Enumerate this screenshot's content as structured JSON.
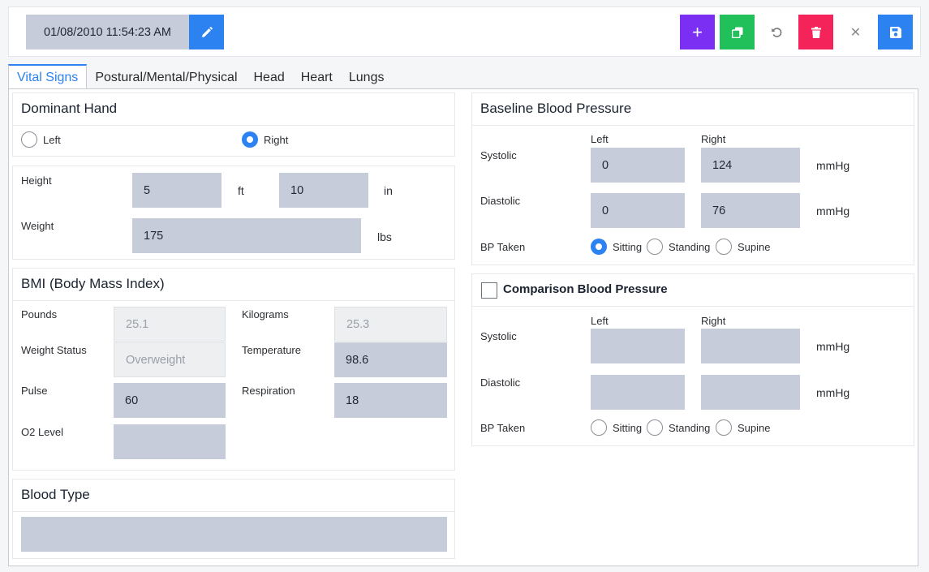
{
  "toolbar": {
    "datetime": "01/08/2010 11:54:23 AM",
    "add_icon": "+",
    "close_icon": "✕"
  },
  "tabs": [
    {
      "label": "Vital Signs",
      "active": true
    },
    {
      "label": "Postural/Mental/Physical"
    },
    {
      "label": "Head"
    },
    {
      "label": "Heart"
    },
    {
      "label": "Lungs"
    }
  ],
  "dominant_hand": {
    "title": "Dominant Hand",
    "left_label": "Left",
    "right_label": "Right",
    "selected": "Right"
  },
  "measurements": {
    "height_label": "Height",
    "height_ft": "5",
    "ft_unit": "ft",
    "height_in": "10",
    "in_unit": "in",
    "weight_label": "Weight",
    "weight": "175",
    "weight_unit": "lbs"
  },
  "bmi": {
    "title": "BMI (Body Mass Index)",
    "pounds_label": "Pounds",
    "pounds": "25.1",
    "kilograms_label": "Kilograms",
    "kilograms": "25.3",
    "weight_status_label": "Weight Status",
    "weight_status": "Overweight",
    "temperature_label": "Temperature",
    "temperature": "98.6",
    "pulse_label": "Pulse",
    "pulse": "60",
    "respiration_label": "Respiration",
    "respiration": "18",
    "o2_label": "O2 Level",
    "o2": ""
  },
  "blood_type": {
    "title": "Blood Type",
    "value": ""
  },
  "baseline_bp": {
    "title": "Baseline Blood Pressure",
    "left_header": "Left",
    "right_header": "Right",
    "systolic_label": "Systolic",
    "systolic_left": "0",
    "systolic_right": "124",
    "diastolic_label": "Diastolic",
    "diastolic_left": "0",
    "diastolic_right": "76",
    "unit": "mmHg",
    "bp_taken_label": "BP Taken",
    "options": [
      "Sitting",
      "Standing",
      "Supine"
    ],
    "selected": "Sitting"
  },
  "comparison_bp": {
    "title": "Comparison Blood Pressure",
    "checked": false,
    "left_header": "Left",
    "right_header": "Right",
    "systolic_label": "Systolic",
    "systolic_left": "",
    "systolic_right": "",
    "diastolic_label": "Diastolic",
    "diastolic_left": "",
    "diastolic_right": "",
    "unit": "mmHg",
    "bp_taken_label": "BP Taken",
    "options": [
      "Sitting",
      "Standing",
      "Supine"
    ],
    "selected": ""
  },
  "colors": {
    "primary": "#2c82f0",
    "add": "#7b2ff2",
    "copy": "#21c05a",
    "delete": "#f4245a",
    "field": "#c7ccdb"
  },
  "icons": [
    "pencil-icon",
    "plus-icon",
    "copy-icon",
    "undo-icon",
    "trash-icon",
    "close-icon",
    "save-icon"
  ]
}
